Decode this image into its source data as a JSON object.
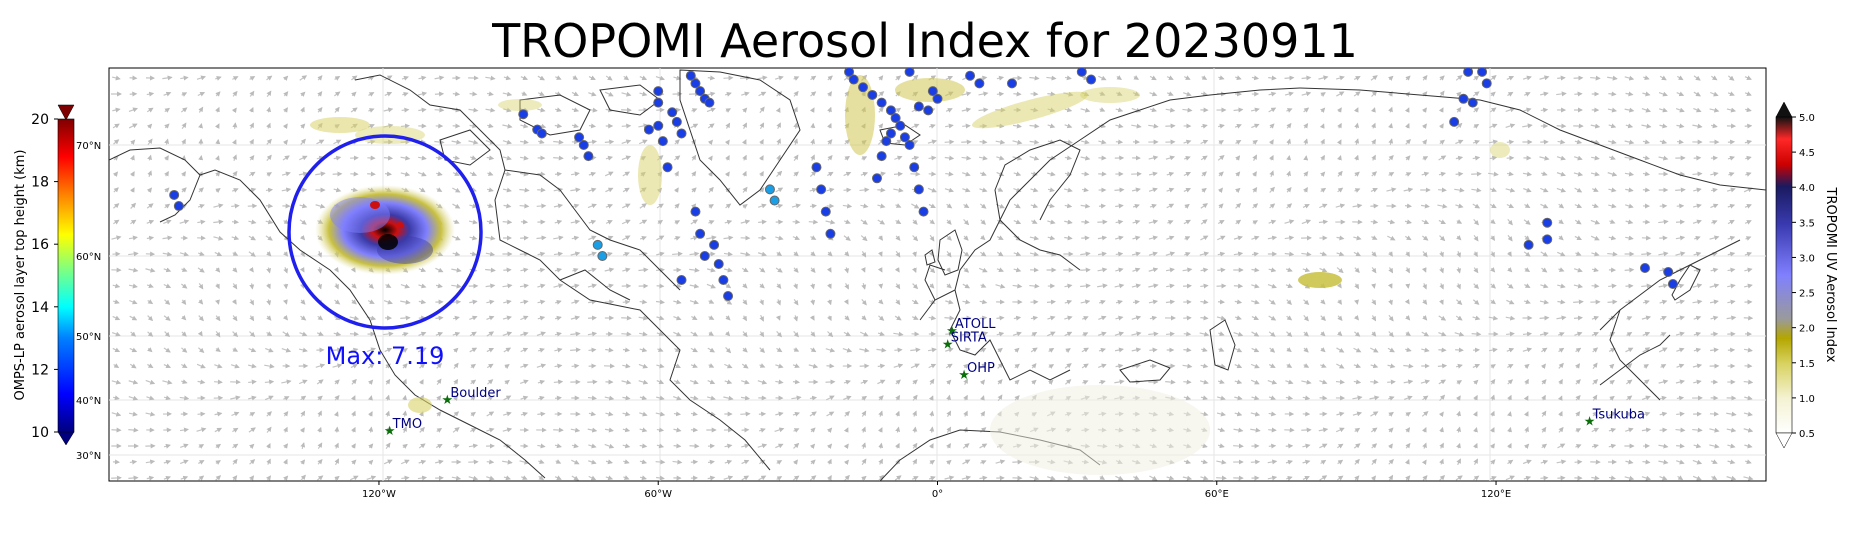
{
  "title": "TROPOMI Aerosol Index for 20230911",
  "annotation": {
    "text": "Max: 7.19",
    "color": "#1010ff"
  },
  "left_colorbar": {
    "label": "OMPS-LP aerosol layer top height (km)",
    "ticks": [
      {
        "value": 10,
        "label": "10"
      },
      {
        "value": 12,
        "label": "12"
      },
      {
        "value": 14,
        "label": "14"
      },
      {
        "value": 16,
        "label": "16"
      },
      {
        "value": 18,
        "label": "18"
      },
      {
        "value": 20,
        "label": "20"
      }
    ],
    "range": [
      10,
      20
    ],
    "lat_ticks": [
      "30°N",
      "40°N",
      "50°N",
      "60°N",
      "70°N"
    ],
    "colors": [
      "#00007f",
      "#0000ff",
      "#007fff",
      "#00ffff",
      "#7fff7f",
      "#ffff00",
      "#ff7f00",
      "#ff0000",
      "#7f0000"
    ]
  },
  "right_colorbar": {
    "label": "TROPOMI UV Aerosol Index",
    "range": [
      0.5,
      5.0
    ],
    "ticks": [
      {
        "value": 0.5,
        "label": "0.5"
      },
      {
        "value": 1.0,
        "label": "1.0"
      },
      {
        "value": 1.5,
        "label": "1.5"
      },
      {
        "value": 2.0,
        "label": "2.0"
      },
      {
        "value": 2.5,
        "label": "2.5"
      },
      {
        "value": 3.0,
        "label": "3.0"
      },
      {
        "value": 3.5,
        "label": "3.5"
      },
      {
        "value": 4.0,
        "label": "4.0"
      },
      {
        "value": 4.5,
        "label": "4.5"
      },
      {
        "value": 5.0,
        "label": "5.0"
      }
    ],
    "colors": [
      "#ffffff",
      "#f2f0c8",
      "#d4cf5a",
      "#b5a800",
      "#8c8c8c",
      "#7a7aff",
      "#3a3aa8",
      "#1a1a60",
      "#cc0000",
      "#ff2020",
      "#000000"
    ]
  },
  "lon_ticks": [
    "120°W",
    "60°W",
    "0°",
    "60°E",
    "120°E"
  ],
  "stations": [
    {
      "name": "ATOLL",
      "lon": 3.1,
      "lat": 50.6
    },
    {
      "name": "SIRTA",
      "lon": 2.2,
      "lat": 48.7
    },
    {
      "name": "OHP",
      "lon": 5.7,
      "lat": 43.9
    },
    {
      "name": "Boulder",
      "lon": -105.3,
      "lat": 40.0
    },
    {
      "name": "TMO",
      "lon": -117.7,
      "lat": 34.4
    },
    {
      "name": "Tsukuba",
      "lon": 140.1,
      "lat": 36.1
    }
  ],
  "max_circle": {
    "lon": -120,
    "lat": 58
  },
  "omps_points": [
    {
      "lon": -164,
      "lat": 65.5
    },
    {
      "lon": -163,
      "lat": 64.5
    },
    {
      "lon": -89,
      "lat": 78
    },
    {
      "lon": -86,
      "lat": 74
    },
    {
      "lon": -85,
      "lat": 73
    },
    {
      "lon": -77,
      "lat": 72
    },
    {
      "lon": -76,
      "lat": 70
    },
    {
      "lon": -75,
      "lat": 69
    },
    {
      "lon": -60,
      "lat": 84
    },
    {
      "lon": -60,
      "lat": 81
    },
    {
      "lon": -57,
      "lat": 78.5
    },
    {
      "lon": -56,
      "lat": 76
    },
    {
      "lon": -55,
      "lat": 73
    },
    {
      "lon": -60,
      "lat": 75
    },
    {
      "lon": -62,
      "lat": 74
    },
    {
      "lon": -59,
      "lat": 71
    },
    {
      "lon": -58,
      "lat": 68
    },
    {
      "lon": -53,
      "lat": 88
    },
    {
      "lon": -52,
      "lat": 86
    },
    {
      "lon": -51,
      "lat": 84
    },
    {
      "lon": -50,
      "lat": 82
    },
    {
      "lon": -49,
      "lat": 81
    },
    {
      "lon": -52,
      "lat": 64
    },
    {
      "lon": -51,
      "lat": 62
    },
    {
      "lon": -50,
      "lat": 60
    },
    {
      "lon": -55,
      "lat": 57
    },
    {
      "lon": -48,
      "lat": 61
    },
    {
      "lon": -47,
      "lat": 59
    },
    {
      "lon": -46,
      "lat": 57
    },
    {
      "lon": -45,
      "lat": 55
    },
    {
      "lon": -26,
      "lat": 68
    },
    {
      "lon": -25,
      "lat": 66
    },
    {
      "lon": -24,
      "lat": 64
    },
    {
      "lon": -23,
      "lat": 62
    },
    {
      "lon": -19,
      "lat": 89
    },
    {
      "lon": -18,
      "lat": 87
    },
    {
      "lon": -16,
      "lat": 85
    },
    {
      "lon": -14,
      "lat": 83
    },
    {
      "lon": -12,
      "lat": 81
    },
    {
      "lon": -10,
      "lat": 79
    },
    {
      "lon": -9,
      "lat": 77
    },
    {
      "lon": -8,
      "lat": 75
    },
    {
      "lon": -10,
      "lat": 73
    },
    {
      "lon": -11,
      "lat": 71
    },
    {
      "lon": -12,
      "lat": 69
    },
    {
      "lon": -13,
      "lat": 67
    },
    {
      "lon": -7,
      "lat": 72
    },
    {
      "lon": -6,
      "lat": 70
    },
    {
      "lon": -5,
      "lat": 68
    },
    {
      "lon": -4,
      "lat": 66
    },
    {
      "lon": -3,
      "lat": 64
    },
    {
      "lon": -1,
      "lat": 84
    },
    {
      "lon": 0,
      "lat": 82
    },
    {
      "lon": -2,
      "lat": 79
    },
    {
      "lon": -6,
      "lat": 89
    },
    {
      "lon": -4,
      "lat": 80
    },
    {
      "lon": 7,
      "lat": 88
    },
    {
      "lon": 9,
      "lat": 86
    },
    {
      "lon": 16,
      "lat": 86
    },
    {
      "lon": 31,
      "lat": 89
    },
    {
      "lon": 33,
      "lat": 87
    },
    {
      "lon": 114,
      "lat": 89
    },
    {
      "lon": 117,
      "lat": 89
    },
    {
      "lon": 118,
      "lat": 86
    },
    {
      "lon": 113,
      "lat": 82
    },
    {
      "lon": 115,
      "lat": 81
    },
    {
      "lon": 111,
      "lat": 76
    },
    {
      "lon": 127,
      "lat": 61
    },
    {
      "lon": 131,
      "lat": 63
    },
    {
      "lon": 131,
      "lat": 61.5
    },
    {
      "lon": 152,
      "lat": 58.5
    },
    {
      "lon": 157,
      "lat": 58
    },
    {
      "lon": 158,
      "lat": 56.5
    }
  ],
  "omps_points_low": [
    {
      "lon": -73,
      "lat": 61
    },
    {
      "lon": -72,
      "lat": 60
    },
    {
      "lon": -36,
      "lat": 66
    },
    {
      "lon": -35,
      "lat": 65
    }
  ]
}
